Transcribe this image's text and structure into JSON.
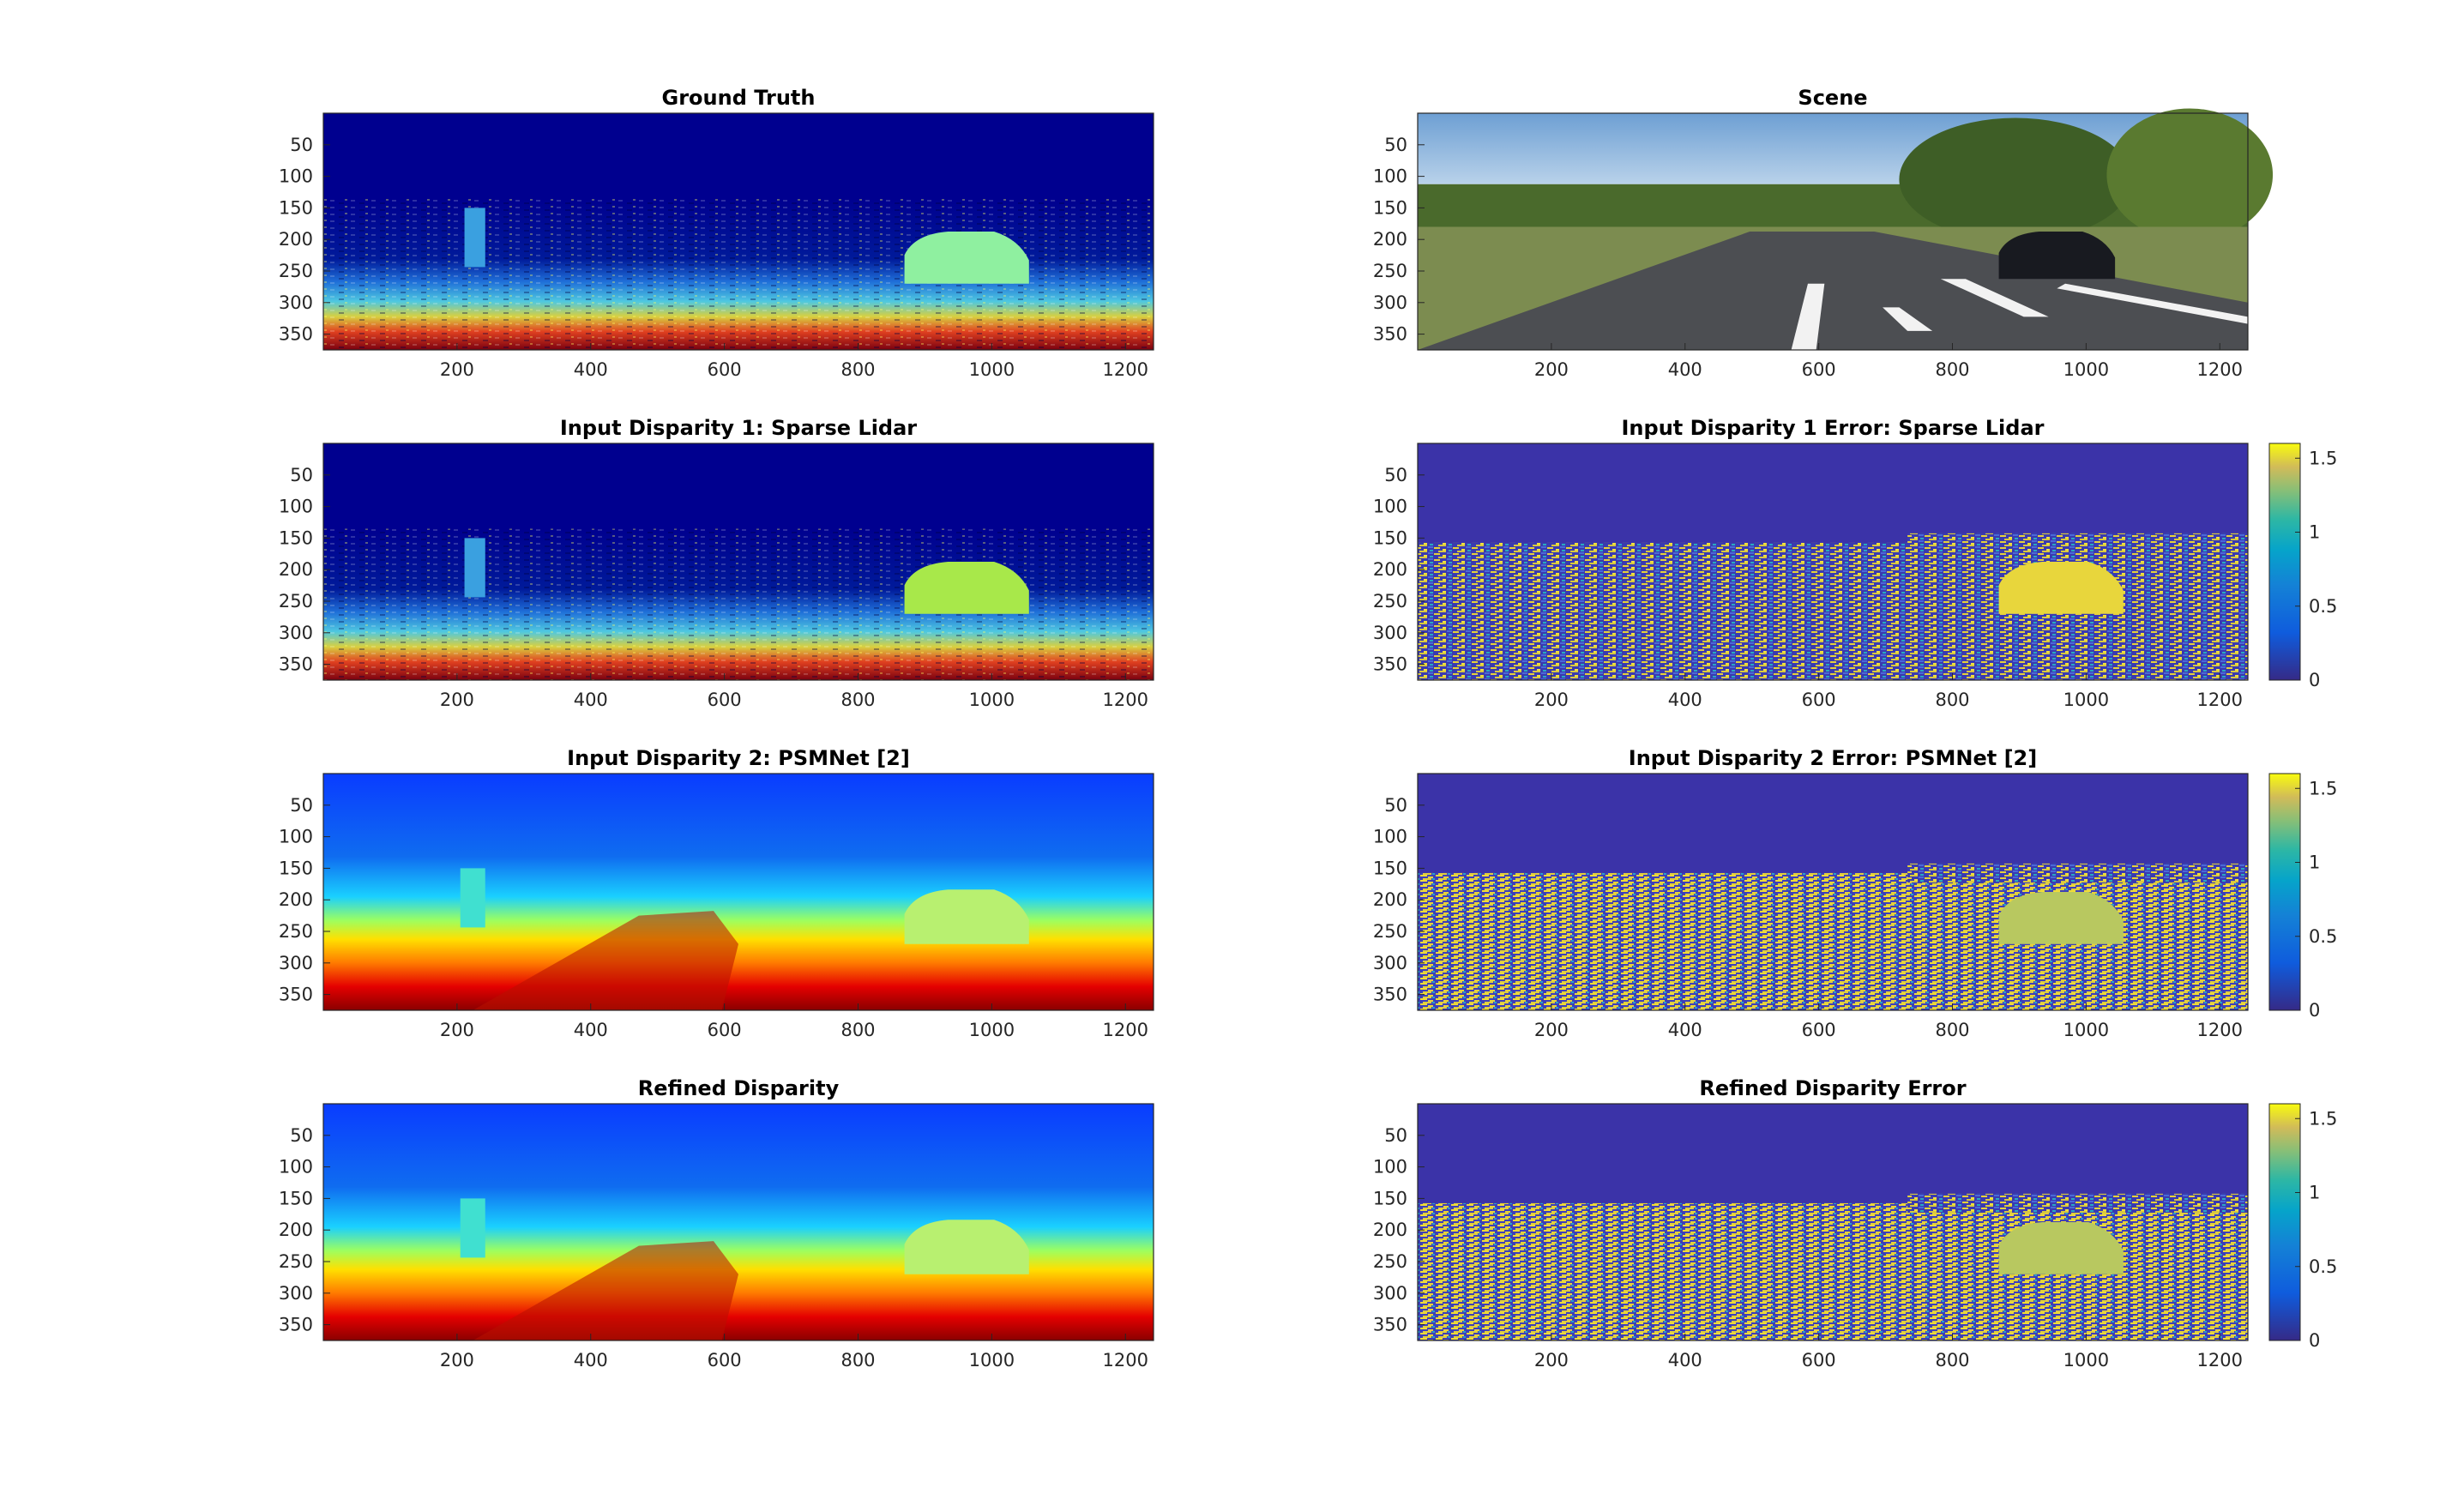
{
  "figure": {
    "panels": [
      {
        "id": "ground-truth",
        "title": "Ground Truth",
        "kind": "jet-sparse"
      },
      {
        "id": "scene",
        "title": "Scene",
        "kind": "photo"
      },
      {
        "id": "lidar",
        "title": "Input Disparity 1: Sparse Lidar",
        "kind": "jet-sparse"
      },
      {
        "id": "lidar-error",
        "title": "Input Disparity 1 Error: Sparse Lidar",
        "kind": "error"
      },
      {
        "id": "psmnet",
        "title": "Input Disparity 2: PSMNet [2]",
        "kind": "jet-dense"
      },
      {
        "id": "psmnet-error",
        "title": "Input Disparity 2 Error: PSMNet [2]",
        "kind": "error"
      },
      {
        "id": "refined",
        "title": "Refined Disparity",
        "kind": "jet-dense"
      },
      {
        "id": "refined-error",
        "title": "Refined Disparity Error",
        "kind": "error"
      }
    ],
    "x_ticks": [
      "200",
      "400",
      "600",
      "800",
      "1000",
      "1200"
    ],
    "y_ticks": [
      "50",
      "100",
      "150",
      "200",
      "250",
      "300",
      "350"
    ],
    "colorbar_ticks": [
      "1.5",
      "1",
      "0.5",
      "0"
    ],
    "colormaps": {
      "disparity": "jet",
      "error": "parula"
    }
  }
}
